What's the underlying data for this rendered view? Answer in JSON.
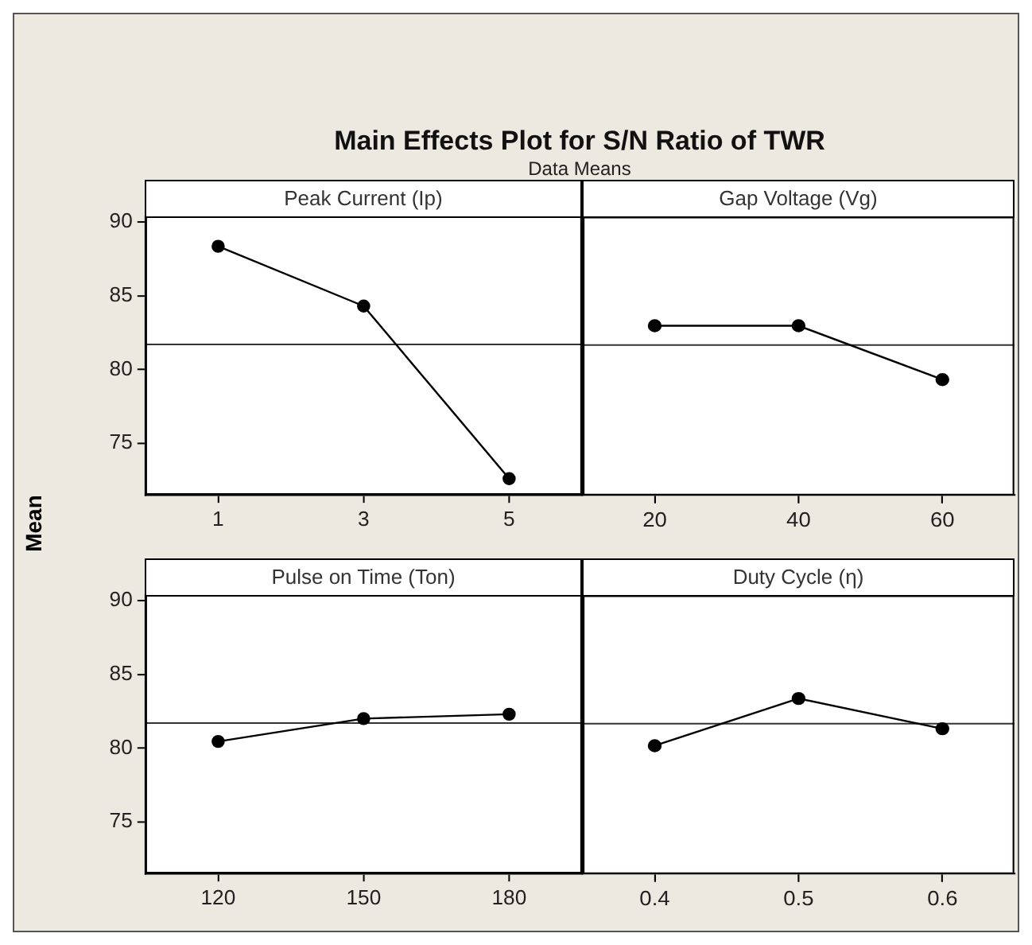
{
  "chart_data": [
    {
      "type": "line",
      "title": "Main Effects Plot for S/N Ratio of TWR",
      "subtitle": "Data Means",
      "ylabel": "Mean",
      "xlabel": "Peak Current (Ip)",
      "x": [
        1,
        3,
        5
      ],
      "xlim": [
        0,
        6
      ],
      "xticks": [
        1,
        3,
        5
      ],
      "ylim": [
        71.5,
        90.4
      ],
      "yticks": [
        75,
        80,
        85,
        90
      ],
      "marker": "circle",
      "series": [
        {
          "color": "#000000",
          "values": [
            88.35,
            84.3,
            72.6
          ]
        }
      ],
      "ref_lines": [
        {
          "axis": "y",
          "value": 81.7,
          "color": "#333333"
        }
      ]
    },
    {
      "type": "line",
      "xlabel": "Gap Voltage (Vg)",
      "x": [
        20,
        40,
        60
      ],
      "xlim": [
        10,
        70
      ],
      "xticks": [
        20,
        40,
        60
      ],
      "ylim": [
        71.5,
        90.4
      ],
      "yticks": [
        75,
        80,
        85,
        90
      ],
      "tick_labels": "x",
      "marker": "circle",
      "series": [
        {
          "color": "#000000",
          "values": [
            83.0,
            83.0,
            79.35
          ]
        }
      ],
      "ref_lines": [
        {
          "axis": "y",
          "value": 81.7,
          "color": "#333333"
        }
      ]
    },
    {
      "type": "line",
      "xlabel": "Pulse on Time (Ton)",
      "x": [
        120,
        150,
        180
      ],
      "xlim": [
        105,
        195
      ],
      "xticks": [
        120,
        150,
        180
      ],
      "ylim": [
        71.5,
        90.4
      ],
      "yticks": [
        75,
        80,
        85,
        90
      ],
      "marker": "circle",
      "series": [
        {
          "color": "#000000",
          "values": [
            80.45,
            82.0,
            82.3
          ]
        }
      ],
      "ref_lines": [
        {
          "axis": "y",
          "value": 81.7,
          "color": "#333333"
        }
      ]
    },
    {
      "type": "line",
      "xlabel": "Duty Cycle (η)",
      "x": [
        0.4,
        0.5,
        0.6
      ],
      "xlim": [
        0.35,
        0.65
      ],
      "xticks": [
        0.4,
        0.5,
        0.6
      ],
      "ylim": [
        71.5,
        90.4
      ],
      "yticks": [
        75,
        80,
        85,
        90
      ],
      "tick_labels": "x",
      "marker": "circle",
      "series": [
        {
          "color": "#000000",
          "values": [
            80.2,
            83.4,
            81.35
          ]
        }
      ],
      "ref_lines": [
        {
          "axis": "y",
          "value": 81.7,
          "color": "#333333"
        }
      ]
    }
  ]
}
